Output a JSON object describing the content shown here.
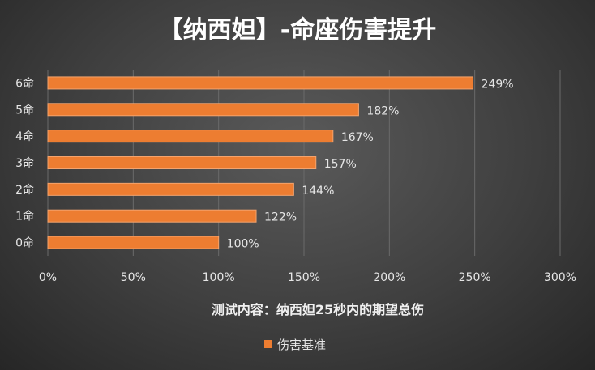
{
  "chart_data": {
    "type": "bar",
    "orientation": "horizontal",
    "title": "【纳西妲】-命座伤害提升",
    "xlabel": "测试内容：纳西妲25秒内的期望总伤",
    "ylabel": "",
    "categories": [
      "6命",
      "5命",
      "4命",
      "3命",
      "2命",
      "1命",
      "0命"
    ],
    "series": [
      {
        "name": "伤害基准",
        "values": [
          249,
          182,
          167,
          157,
          144,
          122,
          100
        ],
        "labels": [
          "249%",
          "182%",
          "167%",
          "157%",
          "144%",
          "122%",
          "100%"
        ],
        "color": "#ed7d31"
      }
    ],
    "xlim": [
      0,
      300
    ],
    "xticks": [
      {
        "value": 0,
        "label": "0%"
      },
      {
        "value": 50,
        "label": "50%"
      },
      {
        "value": 100,
        "label": "100%"
      },
      {
        "value": 150,
        "label": "150%"
      },
      {
        "value": 200,
        "label": "200%"
      },
      {
        "value": 250,
        "label": "250%"
      },
      {
        "value": 300,
        "label": "300%"
      }
    ],
    "grid": true,
    "legend_position": "bottom",
    "colors": {
      "bar": "#ed7d31",
      "bar_stroke": "#f4a36d",
      "grid": "#6a6a6a",
      "text": "#e6e6e6",
      "title": "#ffffff"
    }
  }
}
